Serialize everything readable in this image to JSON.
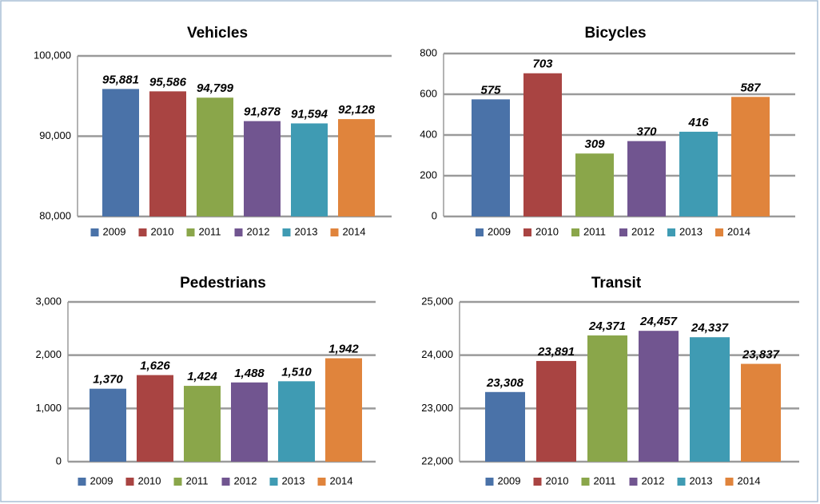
{
  "chart_data": [
    {
      "type": "bar",
      "title": "Vehicles",
      "series": [
        {
          "name": "2009",
          "color": "#4a72a8",
          "values": [
            95881
          ],
          "value_labels": [
            "95,881"
          ]
        },
        {
          "name": "2010",
          "color": "#a94442",
          "values": [
            95586
          ],
          "value_labels": [
            "95,586"
          ]
        },
        {
          "name": "2011",
          "color": "#8aa64a",
          "values": [
            94799
          ],
          "value_labels": [
            "94,799"
          ]
        },
        {
          "name": "2012",
          "color": "#715590",
          "values": [
            91878
          ],
          "value_labels": [
            "91,878"
          ]
        },
        {
          "name": "2013",
          "color": "#3f9bb3",
          "values": [
            91594
          ],
          "value_labels": [
            "91,594"
          ]
        },
        {
          "name": "2014",
          "color": "#e0843c",
          "values": [
            92128
          ],
          "value_labels": [
            "92,128"
          ]
        }
      ],
      "ylim": [
        80000,
        100000
      ],
      "yticks": [
        {
          "value": 80000,
          "label": "80,000"
        },
        {
          "value": 90000,
          "label": "90,000"
        },
        {
          "value": 100000,
          "label": "100,000"
        }
      ],
      "grid": true
    },
    {
      "type": "bar",
      "title": "Bicycles",
      "series": [
        {
          "name": "2009",
          "color": "#4a72a8",
          "values": [
            575
          ]
        },
        {
          "name": "2010",
          "color": "#a94442",
          "values": [
            703
          ]
        },
        {
          "name": "2011",
          "color": "#8aa64a",
          "values": [
            309
          ]
        },
        {
          "name": "2012",
          "color": "#715590",
          "values": [
            370
          ]
        },
        {
          "name": "2013",
          "color": "#3f9bb3",
          "values": [
            416
          ]
        },
        {
          "name": "2014",
          "color": "#e0843c",
          "values": [
            587
          ]
        }
      ],
      "ylim": [
        0,
        800
      ],
      "yticks": [
        0,
        200,
        400,
        600,
        800
      ],
      "grid": true
    },
    {
      "type": "bar",
      "title": "Pedestrians",
      "series": [
        {
          "name": "2009",
          "color": "#4a72a8",
          "values": [
            1370
          ],
          "value_labels": [
            "1,370"
          ]
        },
        {
          "name": "2010",
          "color": "#a94442",
          "values": [
            1626
          ],
          "value_labels": [
            "1,626"
          ]
        },
        {
          "name": "2011",
          "color": "#8aa64a",
          "values": [
            1424
          ],
          "value_labels": [
            "1,424"
          ]
        },
        {
          "name": "2012",
          "color": "#715590",
          "values": [
            1488
          ],
          "value_labels": [
            "1,488"
          ]
        },
        {
          "name": "2013",
          "color": "#3f9bb3",
          "values": [
            1510
          ],
          "value_labels": [
            "1,510"
          ]
        },
        {
          "name": "2014",
          "color": "#e0843c",
          "values": [
            1942
          ],
          "value_labels": [
            "1,942"
          ]
        }
      ],
      "ylim": [
        0,
        3000
      ],
      "yticks": [
        0,
        {
          "value": 1000,
          "label": "1,000"
        },
        {
          "value": 2000,
          "label": "2,000"
        },
        {
          "value": 3000,
          "label": "3,000"
        }
      ],
      "grid": true
    },
    {
      "type": "bar",
      "title": "Transit",
      "series": [
        {
          "name": "2009",
          "color": "#4a72a8",
          "values": [
            23308
          ],
          "value_labels": [
            "23,308"
          ]
        },
        {
          "name": "2010",
          "color": "#a94442",
          "values": [
            23891
          ],
          "value_labels": [
            "23,891"
          ]
        },
        {
          "name": "2011",
          "color": "#8aa64a",
          "values": [
            24371
          ],
          "value_labels": [
            "24,371"
          ]
        },
        {
          "name": "2012",
          "color": "#715590",
          "values": [
            24457
          ],
          "value_labels": [
            "24,457"
          ]
        },
        {
          "name": "2013",
          "color": "#3f9bb3",
          "values": [
            24337
          ],
          "value_labels": [
            "24,337"
          ]
        },
        {
          "name": "2014",
          "color": "#e0843c",
          "values": [
            23837
          ],
          "value_labels": [
            "23,837"
          ]
        }
      ],
      "ylim": [
        22000,
        25000
      ],
      "yticks": [
        {
          "value": 22000,
          "label": "22,000"
        },
        {
          "value": 23000,
          "label": "23,000"
        },
        {
          "value": 24000,
          "label": "24,000"
        },
        {
          "value": 25000,
          "label": "25,000"
        }
      ],
      "grid": true
    }
  ]
}
